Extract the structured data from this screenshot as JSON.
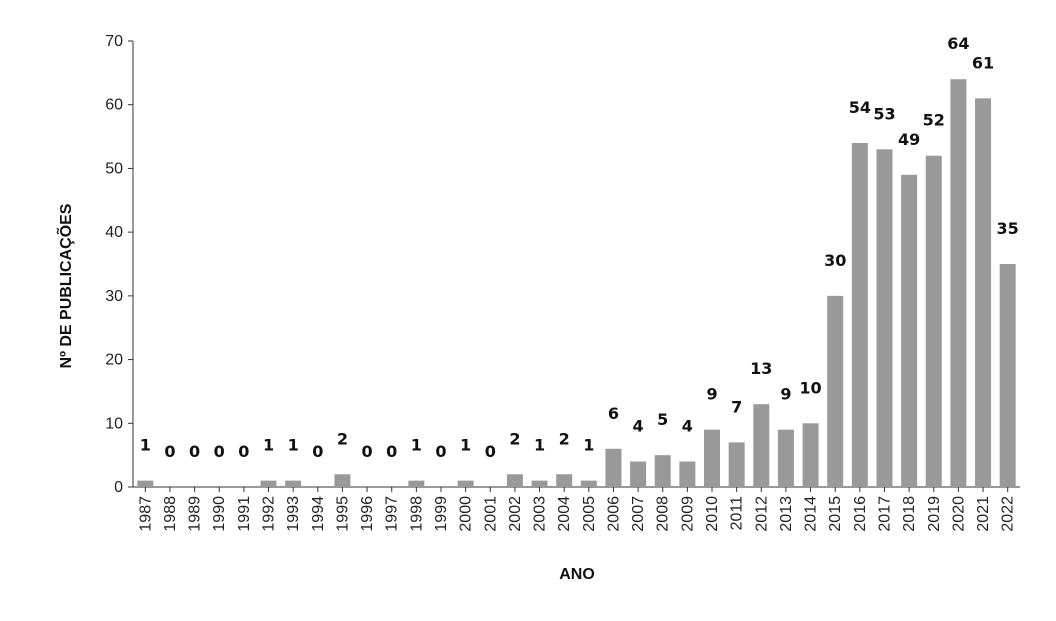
{
  "chart_data": {
    "type": "bar",
    "title": "",
    "xlabel": "ANO",
    "ylabel": "Nº DE PUBLICAÇÕES",
    "ylim": [
      0,
      70
    ],
    "yticks": [
      0,
      10,
      20,
      30,
      40,
      50,
      60,
      70
    ],
    "categories": [
      "1987",
      "1988",
      "1989",
      "1990",
      "1991",
      "1992",
      "1993",
      "1994",
      "1995",
      "1996",
      "1997",
      "1998",
      "1999",
      "2000",
      "2001",
      "2002",
      "2003",
      "2004",
      "2005",
      "2006",
      "2007",
      "2008",
      "2009",
      "2010",
      "2011",
      "2012",
      "2013",
      "2014",
      "2015",
      "2016",
      "2017",
      "2018",
      "2019",
      "2020",
      "2021",
      "2022"
    ],
    "values": [
      1,
      0,
      0,
      0,
      0,
      1,
      1,
      0,
      2,
      0,
      0,
      1,
      0,
      1,
      0,
      2,
      1,
      2,
      1,
      6,
      4,
      5,
      4,
      9,
      7,
      13,
      9,
      10,
      30,
      54,
      53,
      49,
      52,
      64,
      61,
      35
    ],
    "bar_color": "#999999",
    "grid": false,
    "legend": "none"
  }
}
